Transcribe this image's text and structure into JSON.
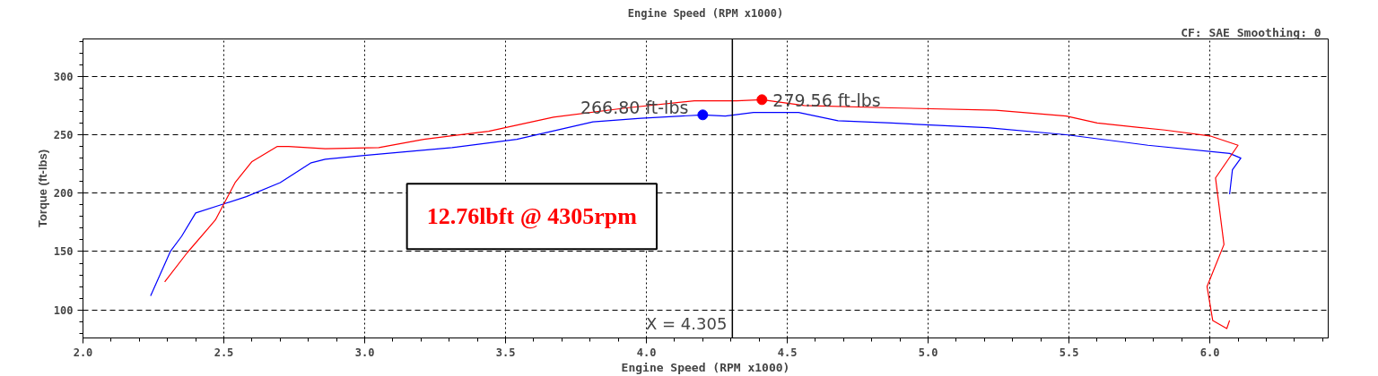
{
  "chart_data": {
    "type": "line",
    "title": "Engine Speed (RPM x1000)",
    "xlabel": "Engine Speed (RPM x1000)",
    "ylabel": "Torque (ft-lbs)",
    "xlim": [
      2.0,
      6.42
    ],
    "ylim": [
      76,
      332
    ],
    "xticks": [
      {
        "value": 2,
        "label": "2.0"
      },
      {
        "value": 2.5,
        "label": "2.5"
      },
      {
        "value": 3,
        "label": "3.0"
      },
      {
        "value": 3.5,
        "label": "3.5"
      },
      {
        "value": 4,
        "label": "4.0"
      },
      {
        "value": 4.5,
        "label": "4.5"
      },
      {
        "value": 5,
        "label": "5.0"
      },
      {
        "value": 5.5,
        "label": "5.5"
      },
      {
        "value": 6,
        "label": "6.0"
      }
    ],
    "yticks": [
      100,
      150,
      200,
      250,
      300
    ],
    "grid": true,
    "series": [
      {
        "color": "#0000ff",
        "x": [
          2.24,
          2.31,
          2.35,
          2.4,
          2.49,
          2.58,
          2.7,
          2.81,
          2.86,
          2.99,
          3.31,
          3.54,
          3.81,
          3.98,
          4.2,
          4.28,
          4.38,
          4.54,
          4.68,
          4.87,
          5.21,
          5.49,
          5.78,
          6.07,
          6.11,
          6.08,
          6.07
        ],
        "values": [
          112,
          150,
          163,
          183,
          190,
          197,
          209,
          226,
          229,
          232,
          239,
          246,
          261,
          264,
          267,
          266,
          269,
          269,
          262,
          260,
          256,
          250,
          241,
          234,
          230,
          220,
          199
        ]
      },
      {
        "color": "#ff0000",
        "x": [
          2.29,
          2.37,
          2.47,
          2.54,
          2.6,
          2.69,
          2.73,
          2.86,
          3.05,
          3.21,
          3.44,
          3.67,
          3.93,
          4.17,
          4.32,
          4.41,
          4.56,
          4.87,
          5.24,
          5.49,
          5.6,
          5.84,
          6.0,
          6.1,
          6.02,
          6.05,
          5.99,
          6.01,
          6.06,
          6.07
        ],
        "values": [
          124,
          149,
          177,
          209,
          227,
          240,
          240,
          238,
          239,
          246,
          253,
          265,
          273,
          279,
          279,
          280,
          275,
          273,
          271,
          266,
          260,
          254,
          249,
          241,
          213,
          156,
          120,
          91,
          84,
          91
        ]
      },
      {
        "type": "scatter",
        "color": "#0000ff",
        "x": [
          4.2
        ],
        "values": [
          267
        ]
      },
      {
        "type": "scatter",
        "color": "#ff0000",
        "x": [
          4.41
        ],
        "values": [
          280
        ]
      }
    ],
    "ref_lines": [
      {
        "axis": "x",
        "value": 4.305,
        "label": "X = 4.305",
        "color": "#000000"
      }
    ],
    "annotations": [
      "12.76lbft @ 4305rpm",
      "CF: SAE  Smoothing: 0",
      {
        "text": "266.80 ft-lbs",
        "x": 4.2,
        "y": 266.8
      },
      {
        "text": "279.56 ft-lbs",
        "x": 4.41,
        "y": 279.56
      }
    ]
  }
}
